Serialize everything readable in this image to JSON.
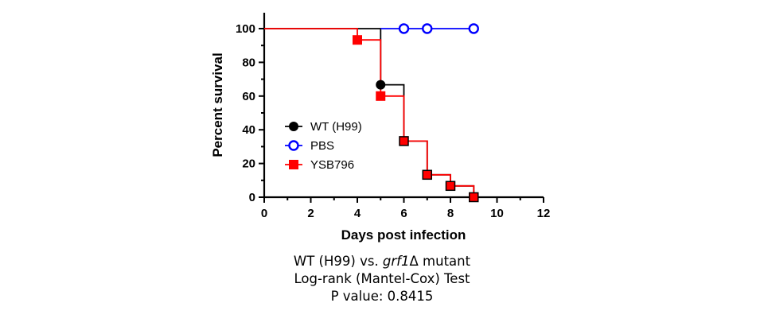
{
  "chart_data": {
    "type": "line",
    "subtype": "kaplan-meier-survival",
    "xlabel": "Days post infection",
    "ylabel": "Percent survival",
    "xlim": [
      0,
      12
    ],
    "ylim": [
      0,
      100
    ],
    "xticks": [
      0,
      2,
      4,
      6,
      8,
      10,
      12
    ],
    "yticks": [
      0,
      20,
      40,
      60,
      80,
      100
    ],
    "grid": false,
    "legend_position": "left",
    "series": [
      {
        "name": "WT (H99)",
        "color": "#000000",
        "marker": "filled-circle",
        "steps": [
          [
            0,
            100
          ],
          [
            5,
            100
          ],
          [
            5,
            66.7
          ],
          [
            6,
            66.7
          ],
          [
            6,
            33.3
          ],
          [
            7,
            33.3
          ],
          [
            7,
            13.3
          ],
          [
            8,
            13.3
          ],
          [
            8,
            6.7
          ],
          [
            9,
            6.7
          ],
          [
            9,
            0
          ],
          [
            10,
            0
          ]
        ],
        "points": [
          [
            5,
            66.7
          ],
          [
            6,
            33.3
          ],
          [
            7,
            13.3
          ],
          [
            8,
            6.7
          ],
          [
            9,
            0
          ]
        ]
      },
      {
        "name": "PBS",
        "color": "#0000ff",
        "marker": "open-circle",
        "steps": [
          [
            5,
            100
          ],
          [
            9,
            100
          ]
        ],
        "points": [
          [
            6,
            100
          ],
          [
            7,
            100
          ],
          [
            9,
            100
          ]
        ]
      },
      {
        "name": "YSB796",
        "color": "#ff0000",
        "marker": "filled-square",
        "steps": [
          [
            0,
            100
          ],
          [
            4,
            100
          ],
          [
            4,
            93.3
          ],
          [
            5,
            93.3
          ],
          [
            5,
            60
          ],
          [
            6,
            60
          ],
          [
            6,
            33.3
          ],
          [
            7,
            33.3
          ],
          [
            7,
            13.3
          ],
          [
            8,
            13.3
          ],
          [
            8,
            6.7
          ],
          [
            9,
            6.7
          ],
          [
            9,
            0
          ]
        ],
        "points": [
          [
            4,
            93.3
          ],
          [
            5,
            60
          ],
          [
            6,
            33.3
          ],
          [
            7,
            13.3
          ],
          [
            8,
            6.7
          ],
          [
            9,
            0
          ]
        ]
      }
    ]
  },
  "caption": {
    "line1_prefix": "WT (H99) vs. ",
    "line1_italic": "grf1",
    "line1_suffix": "Δ mutant",
    "line2": "Log-rank (Mantel-Cox) Test",
    "line3": "P value: 0.8415"
  }
}
